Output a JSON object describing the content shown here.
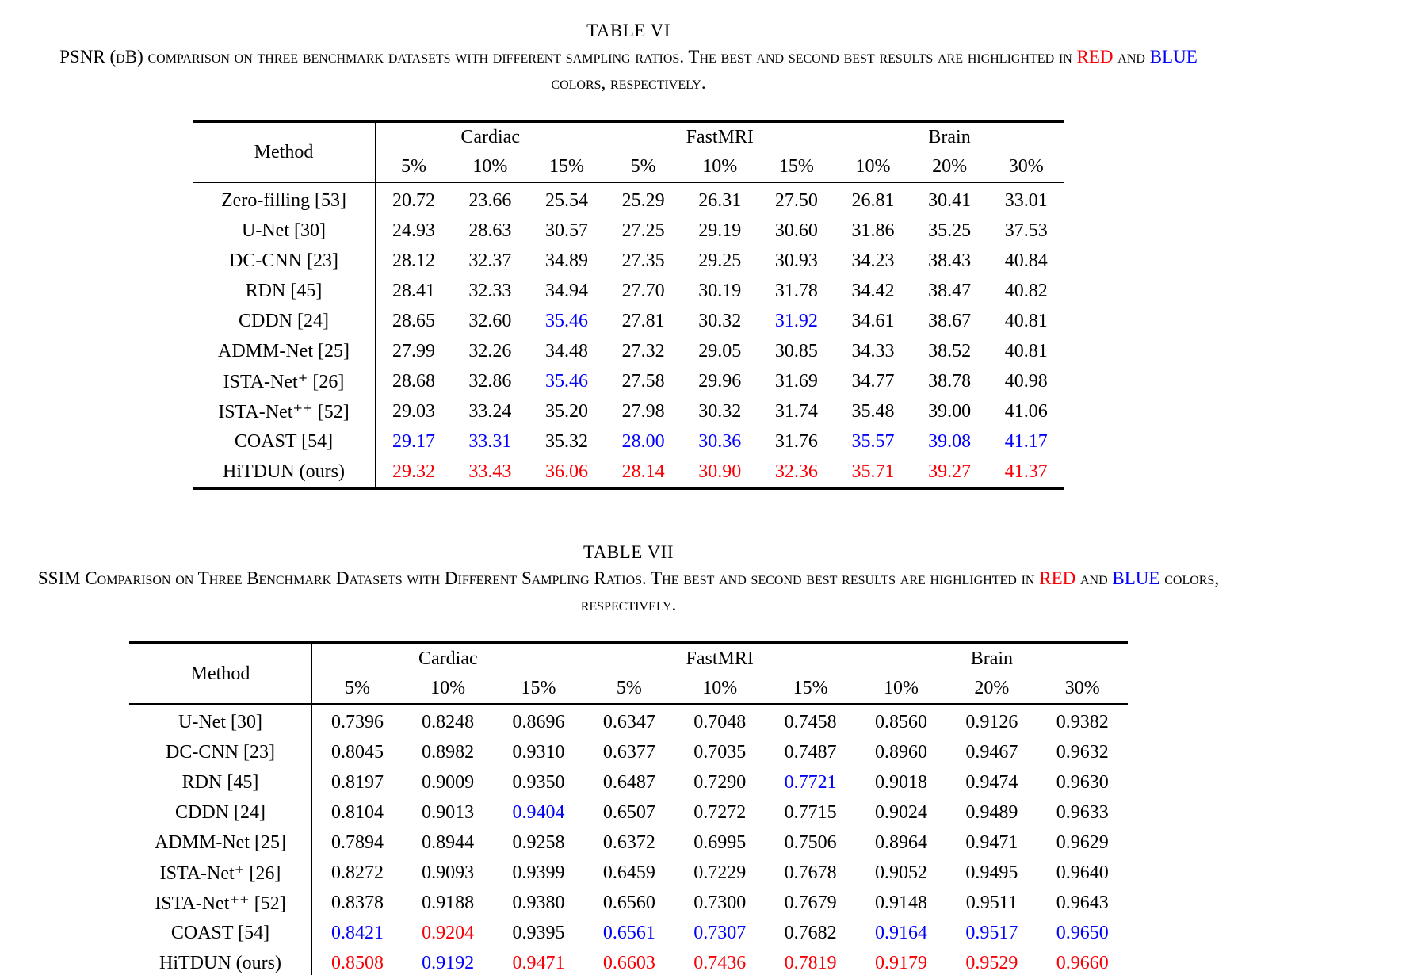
{
  "colors": {
    "text": "#000000",
    "best": "#f80005",
    "second": "#0202f8"
  },
  "tables": [
    {
      "label": "TABLE VI",
      "caption_segments": [
        {
          "text": "PSNR (dB) comparison on three benchmark datasets with different sampling ratios. The best and second best results are highlighted in ",
          "color": ""
        },
        {
          "text": "RED",
          "color": "r"
        },
        {
          "text": " and ",
          "color": ""
        },
        {
          "text": "BLUE",
          "color": "b"
        },
        {
          "text": " colors, respectively.",
          "color": ""
        }
      ],
      "method_header": "Method",
      "groups": [
        {
          "name": "Cardiac",
          "ratios": [
            "5%",
            "10%",
            "15%"
          ]
        },
        {
          "name": "FastMRI",
          "ratios": [
            "5%",
            "10%",
            "15%"
          ]
        },
        {
          "name": "Brain",
          "ratios": [
            "10%",
            "20%",
            "30%"
          ]
        }
      ],
      "rows": [
        {
          "method": "Zero-filling [53]",
          "values": [
            "20.72",
            "23.66",
            "25.54",
            "25.29",
            "26.31",
            "27.50",
            "26.81",
            "30.41",
            "33.01"
          ],
          "colors": [
            "",
            "",
            "",
            "",
            "",
            "",
            "",
            "",
            ""
          ]
        },
        {
          "method": "U-Net [30]",
          "values": [
            "24.93",
            "28.63",
            "30.57",
            "27.25",
            "29.19",
            "30.60",
            "31.86",
            "35.25",
            "37.53"
          ],
          "colors": [
            "",
            "",
            "",
            "",
            "",
            "",
            "",
            "",
            ""
          ]
        },
        {
          "method": "DC-CNN [23]",
          "values": [
            "28.12",
            "32.37",
            "34.89",
            "27.35",
            "29.25",
            "30.93",
            "34.23",
            "38.43",
            "40.84"
          ],
          "colors": [
            "",
            "",
            "",
            "",
            "",
            "",
            "",
            "",
            ""
          ]
        },
        {
          "method": "RDN [45]",
          "values": [
            "28.41",
            "32.33",
            "34.94",
            "27.70",
            "30.19",
            "31.78",
            "34.42",
            "38.47",
            "40.82"
          ],
          "colors": [
            "",
            "",
            "",
            "",
            "",
            "",
            "",
            "",
            ""
          ]
        },
        {
          "method": "CDDN [24]",
          "values": [
            "28.65",
            "32.60",
            "35.46",
            "27.81",
            "30.32",
            "31.92",
            "34.61",
            "38.67",
            "40.81"
          ],
          "colors": [
            "",
            "",
            "b",
            "",
            "",
            "b",
            "",
            "",
            ""
          ]
        },
        {
          "method": "ADMM-Net [25]",
          "values": [
            "27.99",
            "32.26",
            "34.48",
            "27.32",
            "29.05",
            "30.85",
            "34.33",
            "38.52",
            "40.81"
          ],
          "colors": [
            "",
            "",
            "",
            "",
            "",
            "",
            "",
            "",
            ""
          ]
        },
        {
          "method": "ISTA-Net⁺ [26]",
          "values": [
            "28.68",
            "32.86",
            "35.46",
            "27.58",
            "29.96",
            "31.69",
            "34.77",
            "38.78",
            "40.98"
          ],
          "colors": [
            "",
            "",
            "b",
            "",
            "",
            "",
            "",
            "",
            ""
          ]
        },
        {
          "method": "ISTA-Net⁺⁺ [52]",
          "values": [
            "29.03",
            "33.24",
            "35.20",
            "27.98",
            "30.32",
            "31.74",
            "35.48",
            "39.00",
            "41.06"
          ],
          "colors": [
            "",
            "",
            "",
            "",
            "",
            "",
            "",
            "",
            ""
          ]
        },
        {
          "method": "COAST [54]",
          "values": [
            "29.17",
            "33.31",
            "35.32",
            "28.00",
            "30.36",
            "31.76",
            "35.57",
            "39.08",
            "41.17"
          ],
          "colors": [
            "b",
            "b",
            "",
            "b",
            "b",
            "",
            "b",
            "b",
            "b"
          ]
        },
        {
          "method": "HiTDUN (ours)",
          "values": [
            "29.32",
            "33.43",
            "36.06",
            "28.14",
            "30.90",
            "32.36",
            "35.71",
            "39.27",
            "41.37"
          ],
          "colors": [
            "r",
            "r",
            "r",
            "r",
            "r",
            "r",
            "r",
            "r",
            "r"
          ]
        }
      ]
    },
    {
      "label": "TABLE VII",
      "caption_segments": [
        {
          "text": "SSIM Comparison on Three Benchmark Datasets with Different Sampling Ratios. The best and second best results are highlighted in ",
          "color": ""
        },
        {
          "text": "RED",
          "color": "r"
        },
        {
          "text": " and ",
          "color": ""
        },
        {
          "text": "BLUE",
          "color": "b"
        },
        {
          "text": " colors, respectively.",
          "color": ""
        }
      ],
      "method_header": "Method",
      "groups": [
        {
          "name": "Cardiac",
          "ratios": [
            "5%",
            "10%",
            "15%"
          ]
        },
        {
          "name": "FastMRI",
          "ratios": [
            "5%",
            "10%",
            "15%"
          ]
        },
        {
          "name": "Brain",
          "ratios": [
            "10%",
            "20%",
            "30%"
          ]
        }
      ],
      "rows": [
        {
          "method": "U-Net [30]",
          "values": [
            "0.7396",
            "0.8248",
            "0.8696",
            "0.6347",
            "0.7048",
            "0.7458",
            "0.8560",
            "0.9126",
            "0.9382"
          ],
          "colors": [
            "",
            "",
            "",
            "",
            "",
            "",
            "",
            "",
            ""
          ]
        },
        {
          "method": "DC-CNN [23]",
          "values": [
            "0.8045",
            "0.8982",
            "0.9310",
            "0.6377",
            "0.7035",
            "0.7487",
            "0.8960",
            "0.9467",
            "0.9632"
          ],
          "colors": [
            "",
            "",
            "",
            "",
            "",
            "",
            "",
            "",
            ""
          ]
        },
        {
          "method": "RDN [45]",
          "values": [
            "0.8197",
            "0.9009",
            "0.9350",
            "0.6487",
            "0.7290",
            "0.7721",
            "0.9018",
            "0.9474",
            "0.9630"
          ],
          "colors": [
            "",
            "",
            "",
            "",
            "",
            "b",
            "",
            "",
            ""
          ]
        },
        {
          "method": "CDDN [24]",
          "values": [
            "0.8104",
            "0.9013",
            "0.9404",
            "0.6507",
            "0.7272",
            "0.7715",
            "0.9024",
            "0.9489",
            "0.9633"
          ],
          "colors": [
            "",
            "",
            "b",
            "",
            "",
            "",
            "",
            "",
            ""
          ]
        },
        {
          "method": "ADMM-Net [25]",
          "values": [
            "0.7894",
            "0.8944",
            "0.9258",
            "0.6372",
            "0.6995",
            "0.7506",
            "0.8964",
            "0.9471",
            "0.9629"
          ],
          "colors": [
            "",
            "",
            "",
            "",
            "",
            "",
            "",
            "",
            ""
          ]
        },
        {
          "method": "ISTA-Net⁺ [26]",
          "values": [
            "0.8272",
            "0.9093",
            "0.9399",
            "0.6459",
            "0.7229",
            "0.7678",
            "0.9052",
            "0.9495",
            "0.9640"
          ],
          "colors": [
            "",
            "",
            "",
            "",
            "",
            "",
            "",
            "",
            ""
          ]
        },
        {
          "method": "ISTA-Net⁺⁺ [52]",
          "values": [
            "0.8378",
            "0.9188",
            "0.9380",
            "0.6560",
            "0.7300",
            "0.7679",
            "0.9148",
            "0.9511",
            "0.9643"
          ],
          "colors": [
            "",
            "",
            "",
            "",
            "",
            "",
            "",
            "",
            ""
          ]
        },
        {
          "method": "COAST [54]",
          "values": [
            "0.8421",
            "0.9204",
            "0.9395",
            "0.6561",
            "0.7307",
            "0.7682",
            "0.9164",
            "0.9517",
            "0.9650"
          ],
          "colors": [
            "b",
            "r",
            "",
            "b",
            "b",
            "",
            "b",
            "b",
            "b"
          ]
        },
        {
          "method": "HiTDUN (ours)",
          "values": [
            "0.8508",
            "0.9192",
            "0.9471",
            "0.6603",
            "0.7436",
            "0.7819",
            "0.9179",
            "0.9529",
            "0.9660"
          ],
          "colors": [
            "r",
            "b",
            "r",
            "r",
            "r",
            "r",
            "r",
            "r",
            "r"
          ]
        }
      ]
    }
  ]
}
